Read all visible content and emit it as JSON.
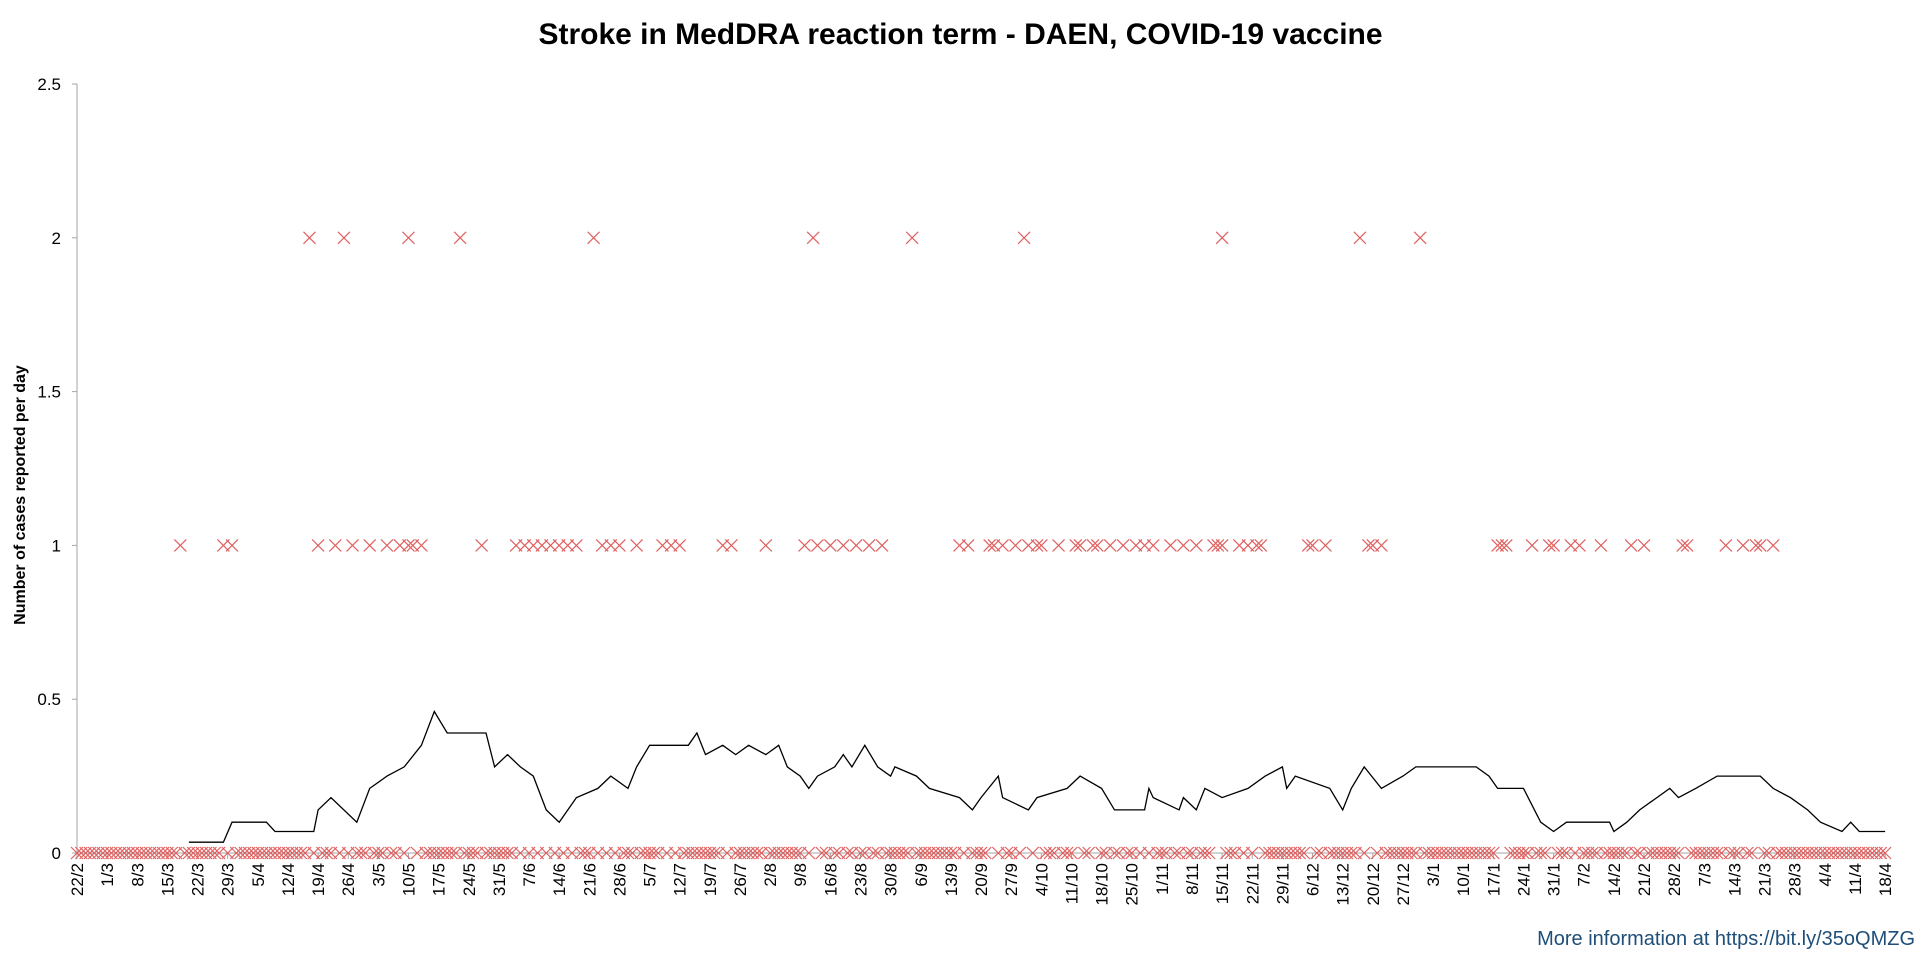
{
  "footer": {
    "more_info": "More information at https://bit.ly/35oQMZG"
  },
  "chart_data": {
    "type": "scatter",
    "title": "Stroke in MedDRA reaction term - DAEN, COVID-19 vaccine",
    "xlabel": "",
    "ylabel": "Number of cases reported per day",
    "ylim": [
      0,
      2.5
    ],
    "yticks": [
      "0",
      "0.5",
      "1",
      "1.5",
      "2",
      "2.5"
    ],
    "x_tick_labels": [
      "22/2",
      "1/3",
      "8/3",
      "15/3",
      "22/3",
      "29/3",
      "5/4",
      "12/4",
      "19/4",
      "26/4",
      "3/5",
      "10/5",
      "17/5",
      "24/5",
      "31/5",
      "7/6",
      "14/6",
      "21/6",
      "28/6",
      "5/7",
      "12/7",
      "19/7",
      "26/7",
      "2/8",
      "9/8",
      "16/8",
      "23/8",
      "30/8",
      "6/9",
      "13/9",
      "20/9",
      "27/9",
      "4/10",
      "11/10",
      "18/10",
      "25/10",
      "1/11",
      "8/11",
      "15/11",
      "22/11",
      "29/11",
      "6/12",
      "13/12",
      "20/12",
      "27/12",
      "3/1",
      "10/1",
      "17/1",
      "24/1",
      "31/1",
      "7/2",
      "14/2",
      "21/2",
      "28/2",
      "7/3",
      "14/3",
      "21/3",
      "28/3",
      "4/4",
      "11/4",
      "18/4"
    ],
    "grid": false,
    "marker_color": "#e06060",
    "line_color": "#000000",
    "series": [
      {
        "name": "",
        "marker": "x",
        "points": [
          [
            9,
            0
          ],
          [
            24,
            1
          ],
          [
            34,
            1
          ],
          [
            36,
            1
          ],
          [
            54,
            2
          ],
          [
            56,
            1
          ],
          [
            60,
            1
          ],
          [
            62,
            2
          ],
          [
            64,
            1
          ],
          [
            68,
            1
          ],
          [
            72,
            1
          ],
          [
            75,
            1
          ],
          [
            77,
            2
          ],
          [
            77,
            1
          ],
          [
            78,
            1
          ],
          [
            80,
            1
          ],
          [
            89,
            2
          ],
          [
            94,
            1
          ],
          [
            120,
            2
          ],
          [
            114,
            1
          ],
          [
            160,
            1
          ],
          [
            171,
            2
          ],
          [
            175,
            1
          ],
          [
            194,
            2
          ],
          [
            215,
            1
          ],
          [
            220,
            2
          ],
          [
            221,
            1
          ],
          [
            223,
            1
          ],
          [
            236,
            1
          ],
          [
            237,
            1
          ],
          [
            240,
            1
          ],
          [
            243,
            1
          ],
          [
            248,
            1
          ],
          [
            265,
            1
          ],
          [
            266,
            1
          ],
          [
            270,
            1
          ],
          [
            272,
            1
          ],
          [
            266,
            2
          ],
          [
            287,
            1
          ],
          [
            286,
            1
          ],
          [
            290,
            1
          ],
          [
            300,
            1
          ],
          [
            298,
            2
          ],
          [
            301,
            1
          ],
          [
            303,
            1
          ],
          [
            312,
            2
          ],
          [
            331,
            1
          ],
          [
            330,
            1
          ],
          [
            332,
            1
          ],
          [
            338,
            1
          ],
          [
            343,
            1
          ],
          [
            347,
            1
          ],
          [
            349,
            1
          ],
          [
            354,
            1
          ],
          [
            361,
            1
          ],
          [
            364,
            1
          ],
          [
            373,
            1
          ],
          [
            374,
            1
          ],
          [
            383,
            1
          ],
          [
            387,
            1
          ],
          [
            390,
            1
          ],
          [
            391,
            1
          ],
          [
            394,
            1
          ],
          [
            102,
            1
          ],
          [
            104,
            1
          ],
          [
            106,
            1
          ],
          [
            108,
            1
          ],
          [
            110,
            1
          ],
          [
            112,
            1
          ],
          [
            116,
            1
          ],
          [
            122,
            1
          ],
          [
            124,
            1
          ],
          [
            126,
            1
          ],
          [
            130,
            1
          ],
          [
            136,
            1
          ],
          [
            138,
            1
          ],
          [
            140,
            1
          ],
          [
            150,
            1
          ],
          [
            152,
            1
          ],
          [
            169,
            1
          ],
          [
            172,
            1
          ],
          [
            178,
            1
          ],
          [
            181,
            1
          ],
          [
            184,
            1
          ],
          [
            187,
            1
          ],
          [
            205,
            1
          ],
          [
            207,
            1
          ],
          [
            212,
            1
          ],
          [
            213,
            1
          ],
          [
            218,
            1
          ],
          [
            224,
            1
          ],
          [
            228,
            1
          ],
          [
            232,
            1
          ],
          [
            233,
            1
          ],
          [
            246,
            1
          ],
          [
            250,
            1
          ],
          [
            254,
            1
          ],
          [
            257,
            1
          ],
          [
            260,
            1
          ],
          [
            264,
            1
          ],
          [
            274,
            1
          ],
          [
            275,
            1
          ],
          [
            342,
            1
          ]
        ]
      },
      {
        "name": "",
        "marker": "line",
        "points": [
          [
            26,
            0.035
          ],
          [
            34,
            0.035
          ],
          [
            36,
            0.1
          ],
          [
            44,
            0.1
          ],
          [
            46,
            0.07
          ],
          [
            55,
            0.07
          ],
          [
            56,
            0.14
          ],
          [
            59,
            0.18
          ],
          [
            65,
            0.1
          ],
          [
            68,
            0.21
          ],
          [
            72,
            0.25
          ],
          [
            76,
            0.28
          ],
          [
            80,
            0.35
          ],
          [
            83,
            0.46
          ],
          [
            86,
            0.39
          ],
          [
            95,
            0.39
          ],
          [
            97,
            0.28
          ],
          [
            100,
            0.32
          ],
          [
            103,
            0.28
          ],
          [
            106,
            0.25
          ],
          [
            109,
            0.14
          ],
          [
            112,
            0.1
          ],
          [
            116,
            0.18
          ],
          [
            121,
            0.21
          ],
          [
            124,
            0.25
          ],
          [
            128,
            0.21
          ],
          [
            130,
            0.28
          ],
          [
            133,
            0.35
          ],
          [
            142,
            0.35
          ],
          [
            144,
            0.39
          ],
          [
            146,
            0.32
          ],
          [
            150,
            0.35
          ],
          [
            153,
            0.32
          ],
          [
            156,
            0.35
          ],
          [
            160,
            0.32
          ],
          [
            163,
            0.35
          ],
          [
            165,
            0.28
          ],
          [
            168,
            0.25
          ],
          [
            170,
            0.21
          ],
          [
            172,
            0.25
          ],
          [
            176,
            0.28
          ],
          [
            178,
            0.32
          ],
          [
            180,
            0.28
          ],
          [
            183,
            0.35
          ],
          [
            186,
            0.28
          ],
          [
            189,
            0.25
          ],
          [
            190,
            0.28
          ],
          [
            195,
            0.25
          ],
          [
            198,
            0.21
          ],
          [
            205,
            0.18
          ],
          [
            208,
            0.14
          ],
          [
            210,
            0.18
          ],
          [
            214,
            0.25
          ],
          [
            215,
            0.18
          ],
          [
            221,
            0.14
          ],
          [
            223,
            0.18
          ],
          [
            230,
            0.21
          ],
          [
            233,
            0.25
          ],
          [
            238,
            0.21
          ],
          [
            241,
            0.14
          ],
          [
            248,
            0.14
          ],
          [
            249,
            0.21
          ],
          [
            250,
            0.18
          ],
          [
            256,
            0.14
          ],
          [
            257,
            0.18
          ],
          [
            260,
            0.14
          ],
          [
            262,
            0.21
          ],
          [
            266,
            0.18
          ],
          [
            272,
            0.21
          ],
          [
            276,
            0.25
          ],
          [
            280,
            0.28
          ],
          [
            281,
            0.21
          ],
          [
            283,
            0.25
          ],
          [
            291,
            0.21
          ],
          [
            294,
            0.14
          ],
          [
            296,
            0.21
          ],
          [
            299,
            0.28
          ],
          [
            303,
            0.21
          ],
          [
            308,
            0.25
          ],
          [
            311,
            0.28
          ],
          [
            325,
            0.28
          ],
          [
            328,
            0.25
          ],
          [
            330,
            0.21
          ],
          [
            336,
            0.21
          ],
          [
            340,
            0.1
          ],
          [
            343,
            0.07
          ],
          [
            346,
            0.1
          ],
          [
            356,
            0.1
          ],
          [
            357,
            0.07
          ],
          [
            360,
            0.1
          ],
          [
            363,
            0.14
          ],
          [
            367,
            0.18
          ],
          [
            370,
            0.21
          ],
          [
            372,
            0.18
          ],
          [
            376,
            0.21
          ],
          [
            381,
            0.25
          ],
          [
            391,
            0.25
          ],
          [
            394,
            0.21
          ],
          [
            398,
            0.18
          ],
          [
            402,
            0.14
          ],
          [
            405,
            0.1
          ],
          [
            410,
            0.07
          ],
          [
            412,
            0.1
          ],
          [
            414,
            0.07
          ],
          [
            420,
            0.07
          ]
        ]
      }
    ]
  }
}
